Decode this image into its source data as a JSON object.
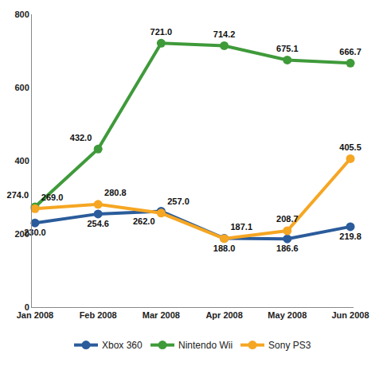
{
  "chart_data": {
    "type": "line",
    "categories": [
      "Jan 2008",
      "Feb 2008",
      "Mar 2008",
      "Apr 2008",
      "May 2008",
      "Jun 2008"
    ],
    "series": [
      {
        "name": "Xbox 360",
        "color": "#2b5c9b",
        "values": [
          230.0,
          254.6,
          262.0,
          188.0,
          186.6,
          219.8
        ],
        "value_labels": [
          "230.0",
          "254.6",
          "262.0",
          "188.0",
          "186.6",
          "219.8"
        ]
      },
      {
        "name": "Nintendo Wii",
        "color": "#3f9a3a",
        "values": [
          274.0,
          432.0,
          721.0,
          714.2,
          675.1,
          666.7
        ],
        "value_labels": [
          "274.0",
          "432.0",
          "721.0",
          "714.2",
          "675.1",
          "666.7"
        ]
      },
      {
        "name": "Sony PS3",
        "color": "#f5a623",
        "values": [
          269.0,
          280.8,
          257.0,
          187.1,
          208.7,
          405.5
        ],
        "value_labels": [
          "269.0",
          "280.8",
          "257.0",
          "187.1",
          "208.7",
          "405.5"
        ]
      }
    ],
    "ylim": [
      0,
      800
    ],
    "yticks": [
      0,
      200,
      400,
      600,
      800
    ],
    "grid": false,
    "legend": "bottom",
    "data_labels": true,
    "marker": "circle",
    "line_style": "solid"
  }
}
